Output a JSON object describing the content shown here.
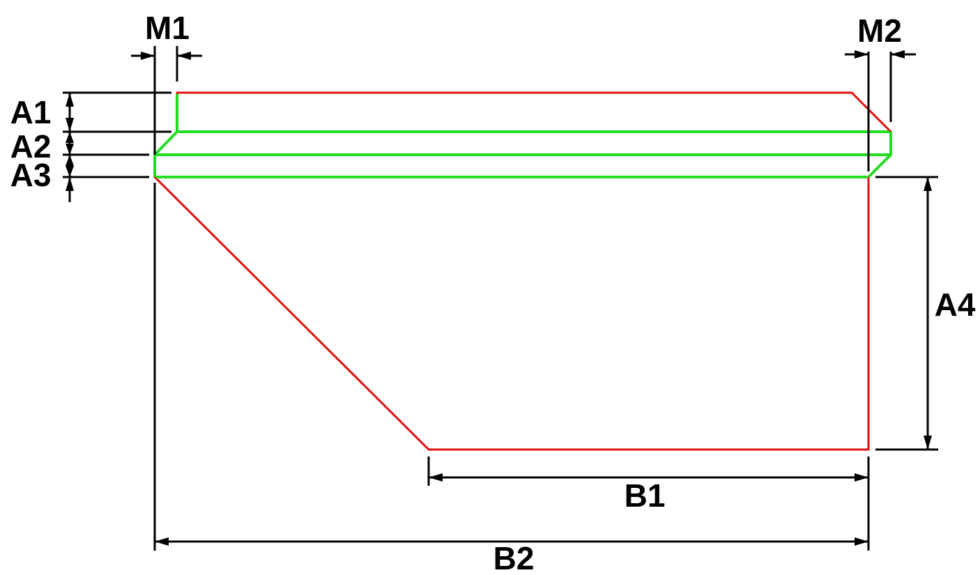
{
  "labels": {
    "m1": "M1",
    "m2": "M2",
    "a1": "A1",
    "a2": "A2",
    "a3": "A3",
    "a4": "A4",
    "b1": "B1",
    "b2": "B2"
  },
  "colors": {
    "outline": "#e01010",
    "layers": "#22dd22",
    "dimensions": "#000000",
    "background": "#ffffff"
  }
}
